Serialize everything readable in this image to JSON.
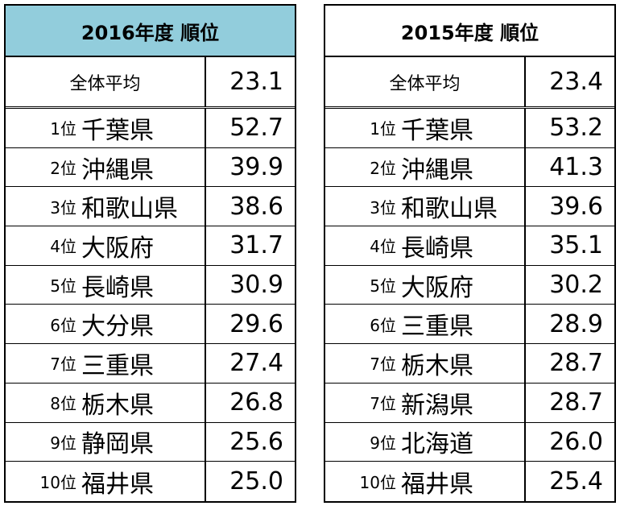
{
  "tables": [
    {
      "title": "2016年度 順位",
      "average_label": "全体平均",
      "average_value": "23.1",
      "rows": [
        {
          "rank": "1位",
          "pref": "千葉県",
          "value": "52.7"
        },
        {
          "rank": "2位",
          "pref": "沖縄県",
          "value": "39.9"
        },
        {
          "rank": "3位",
          "pref": "和歌山県",
          "value": "38.6"
        },
        {
          "rank": "4位",
          "pref": "大阪府",
          "value": "31.7"
        },
        {
          "rank": "5位",
          "pref": "長崎県",
          "value": "30.9"
        },
        {
          "rank": "6位",
          "pref": "大分県",
          "value": "29.6"
        },
        {
          "rank": "7位",
          "pref": "三重県",
          "value": "27.4"
        },
        {
          "rank": "8位",
          "pref": "栃木県",
          "value": "26.8"
        },
        {
          "rank": "9位",
          "pref": "静岡県",
          "value": "25.6"
        },
        {
          "rank": "10位",
          "pref": "福井県",
          "value": "25.0"
        }
      ]
    },
    {
      "title": "2015年度 順位",
      "average_label": "全体平均",
      "average_value": "23.4",
      "rows": [
        {
          "rank": "1位",
          "pref": "千葉県",
          "value": "53.2"
        },
        {
          "rank": "2位",
          "pref": "沖縄県",
          "value": "41.3"
        },
        {
          "rank": "3位",
          "pref": "和歌山県",
          "value": "39.6"
        },
        {
          "rank": "4位",
          "pref": "長崎県",
          "value": "35.1"
        },
        {
          "rank": "5位",
          "pref": "大阪府",
          "value": "30.2"
        },
        {
          "rank": "6位",
          "pref": "三重県",
          "value": "28.9"
        },
        {
          "rank": "7位",
          "pref": "栃木県",
          "value": "28.7"
        },
        {
          "rank": "7位",
          "pref": "新潟県",
          "value": "28.7"
        },
        {
          "rank": "9位",
          "pref": "北海道",
          "value": "26.0"
        },
        {
          "rank": "10位",
          "pref": "福井県",
          "value": "25.4"
        }
      ]
    }
  ],
  "colors": {
    "header_2016_bg": "#92cddc",
    "header_2015_bg": "#ffffff"
  }
}
